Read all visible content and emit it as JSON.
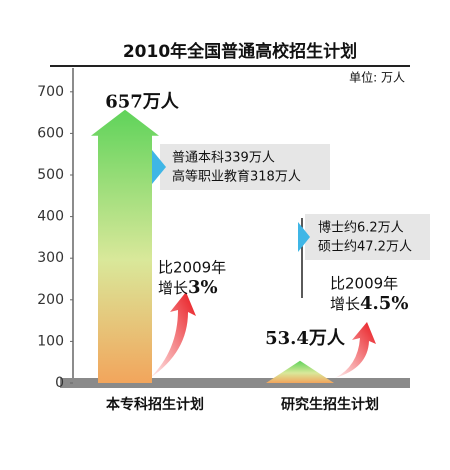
{
  "chart_data": {
    "type": "arrow-bar",
    "title": "2010年全国普通高校招生计划",
    "unit": "单位: 万人",
    "categories": [
      "本专科招生计划",
      "研究生招生计划"
    ],
    "values": [
      657,
      53.4
    ],
    "value_labels": [
      "657万人",
      "53.4万人"
    ],
    "ylim": [
      0,
      750
    ],
    "yticks": [
      0,
      100,
      200,
      300,
      400,
      500,
      600,
      700
    ],
    "breakdown": [
      [
        "普通本科339万人",
        "高等职业教育318万人"
      ],
      [
        "博士约6.2万人",
        "硕士约47.2万人"
      ]
    ],
    "growth": [
      {
        "line1": "比2009年",
        "line2": "增长",
        "rate": "3%"
      },
      {
        "line1": "比2009年",
        "line2": "增长",
        "rate": "4.5%"
      }
    ]
  }
}
